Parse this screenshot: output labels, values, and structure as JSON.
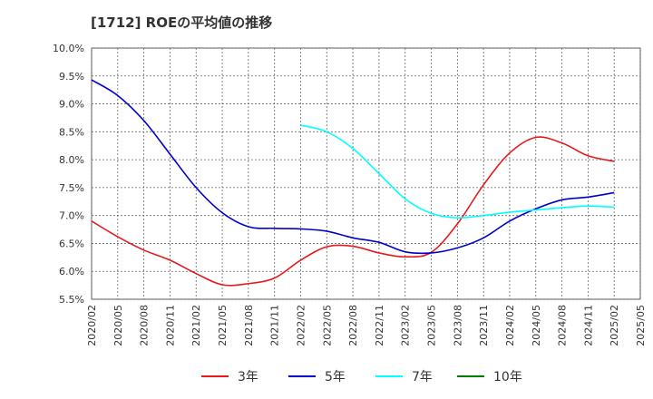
{
  "chart_data": {
    "type": "line",
    "title": "[1712]  ROEの平均値の推移",
    "xlabel": "",
    "ylabel": "",
    "ylim": [
      5.5,
      10.0
    ],
    "y_ticks": [
      "10.0%",
      "9.5%",
      "9.0%",
      "8.5%",
      "8.0%",
      "7.5%",
      "7.0%",
      "6.5%",
      "6.0%",
      "5.5%"
    ],
    "y_tick_values": [
      10.0,
      9.5,
      9.0,
      8.5,
      8.0,
      7.5,
      7.0,
      6.5,
      6.0,
      5.5
    ],
    "x_ticks": [
      "2020/02",
      "2020/05",
      "2020/08",
      "2020/11",
      "2021/02",
      "2021/05",
      "2021/08",
      "2021/11",
      "2022/02",
      "2022/05",
      "2022/08",
      "2022/11",
      "2023/02",
      "2023/05",
      "2023/08",
      "2023/11",
      "2024/02",
      "2024/05",
      "2024/08",
      "2024/11",
      "2025/02",
      "2025/05"
    ],
    "grid": true,
    "legend_position": "bottom",
    "series": [
      {
        "name": "3年",
        "color": "#e41a1c",
        "x_index": [
          0,
          1,
          2,
          3,
          4,
          5,
          6,
          7,
          8,
          9,
          10,
          11,
          12,
          13,
          14,
          15,
          16,
          17,
          18,
          19,
          20
        ],
        "values": [
          6.9,
          6.62,
          6.38,
          6.2,
          5.96,
          5.76,
          5.78,
          5.88,
          6.2,
          6.44,
          6.45,
          6.33,
          6.26,
          6.34,
          6.85,
          7.55,
          8.12,
          8.4,
          8.3,
          8.07,
          7.97
        ]
      },
      {
        "name": "5年",
        "color": "#0000cc",
        "x_index": [
          0,
          1,
          2,
          3,
          4,
          5,
          6,
          7,
          8,
          9,
          10,
          11,
          12,
          13,
          14,
          15,
          16,
          17,
          18,
          19,
          20
        ],
        "values": [
          9.43,
          9.15,
          8.7,
          8.1,
          7.5,
          7.05,
          6.8,
          6.77,
          6.76,
          6.72,
          6.6,
          6.52,
          6.35,
          6.33,
          6.42,
          6.6,
          6.9,
          7.12,
          7.28,
          7.33,
          7.41
        ]
      },
      {
        "name": "7年",
        "color": "#00ffff",
        "x_index": [
          8,
          9,
          10,
          11,
          12,
          13,
          14,
          15,
          16,
          17,
          18,
          19,
          20
        ],
        "values": [
          8.62,
          8.5,
          8.2,
          7.75,
          7.3,
          7.04,
          6.96,
          7.0,
          7.06,
          7.1,
          7.14,
          7.17,
          7.15
        ]
      },
      {
        "name": "10年",
        "color": "#008000",
        "x_index": [],
        "values": []
      }
    ]
  }
}
